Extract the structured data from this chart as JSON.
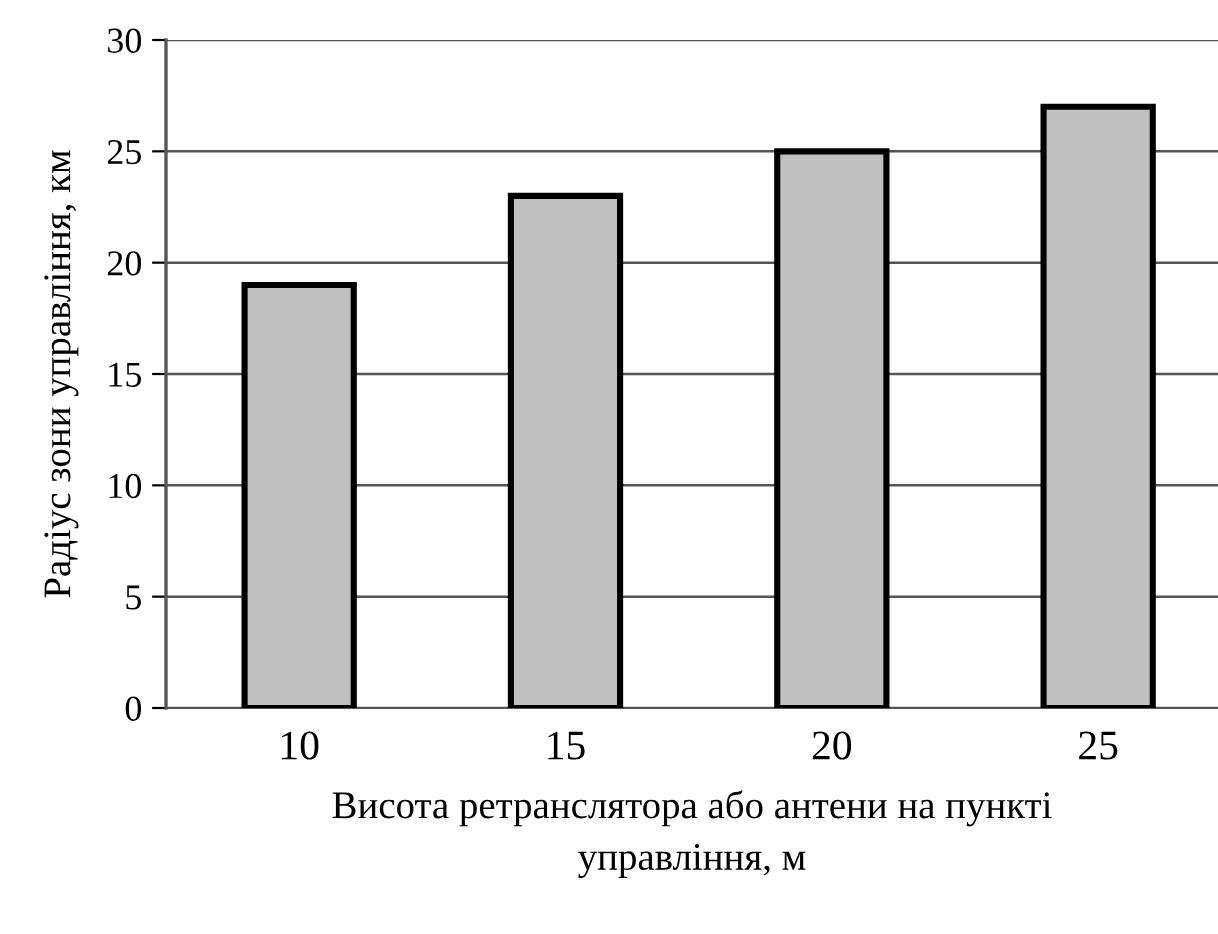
{
  "chart_data": {
    "type": "bar",
    "xlabel": "Висота ретранслятора або антени на пункті\nуправління, м",
    "ylabel": "Радіус зони управління, км",
    "categories": [
      "10",
      "15",
      "20",
      "25"
    ],
    "values": [
      19,
      23,
      25,
      27
    ],
    "color": "#c0c0c0",
    "ylim": [
      0,
      30
    ],
    "yticks": [
      0,
      5,
      10,
      15,
      20,
      25,
      30
    ],
    "grid": "y"
  }
}
